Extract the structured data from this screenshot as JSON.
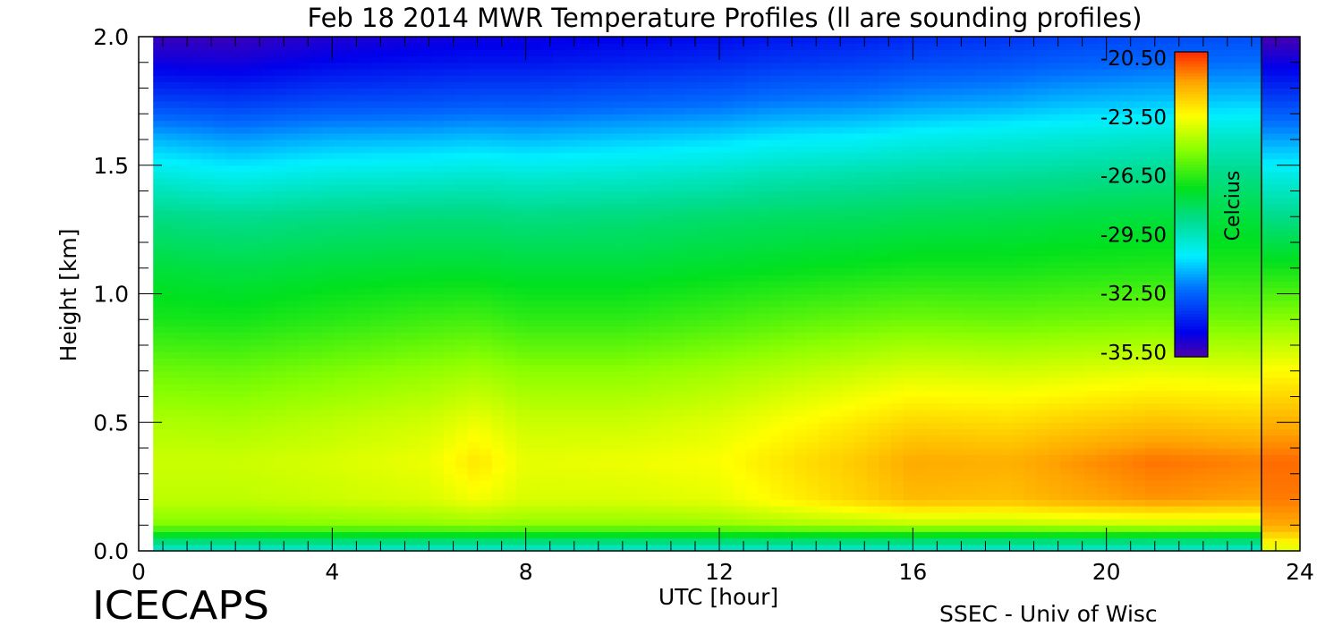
{
  "chart_data": {
    "type": "heatmap",
    "title": "Feb 18 2014 MWR Temperature Profiles (ll are sounding profiles)",
    "xlabel": "UTC [hour]",
    "ylabel": "Height [km]",
    "xlim": [
      0,
      24
    ],
    "ylim": [
      0.0,
      2.0
    ],
    "x_ticks": [
      "0",
      "4",
      "8",
      "12",
      "16",
      "20",
      "24"
    ],
    "y_ticks": [
      "0.0",
      "0.5",
      "1.0",
      "1.5",
      "2.0"
    ],
    "colorbar": {
      "label": "Celcius",
      "ticks": [
        "-20.50",
        "-23.50",
        "-26.50",
        "-29.50",
        "-32.50",
        "-35.50"
      ],
      "range": [
        -35.5,
        -20.5
      ]
    },
    "data_x_extent": [
      0.3,
      23.3
    ],
    "temperature_field": {
      "height_km": [
        0.0,
        0.05,
        0.1,
        0.2,
        0.35,
        0.5,
        0.7,
        0.9,
        1.1,
        1.3,
        1.45,
        1.6,
        1.75,
        1.9,
        2.0
      ],
      "columns": [
        {
          "utc": 0,
          "values": [
            -30,
            -28,
            -25.5,
            -24.6,
            -24.4,
            -24.8,
            -25.7,
            -26.9,
            -27.6,
            -28.6,
            -29.8,
            -31.2,
            -33.0,
            -34.5,
            -35.2
          ]
        },
        {
          "utc": 2,
          "values": [
            -30,
            -28,
            -25.5,
            -24.6,
            -24.4,
            -24.9,
            -25.8,
            -27.0,
            -27.8,
            -28.8,
            -30.2,
            -31.6,
            -33.2,
            -34.6,
            -35.2
          ]
        },
        {
          "utc": 4,
          "values": [
            -30,
            -28,
            -25.4,
            -24.4,
            -24.2,
            -24.6,
            -25.5,
            -26.7,
            -27.6,
            -28.6,
            -29.9,
            -31.3,
            -32.9,
            -34.2,
            -34.8
          ]
        },
        {
          "utc": 6,
          "values": [
            -30,
            -28,
            -25.3,
            -24.2,
            -23.9,
            -24.3,
            -25.2,
            -26.4,
            -27.5,
            -28.5,
            -29.8,
            -31.2,
            -32.8,
            -34.0,
            -34.6
          ]
        },
        {
          "utc": 7,
          "values": [
            -30,
            -28,
            -25.2,
            -23.8,
            -23.2,
            -23.9,
            -25.0,
            -26.3,
            -27.5,
            -28.5,
            -29.7,
            -31.1,
            -32.7,
            -33.9,
            -34.5
          ]
        },
        {
          "utc": 8,
          "values": [
            -30,
            -28,
            -25.3,
            -24.2,
            -24.0,
            -24.4,
            -25.3,
            -26.6,
            -27.6,
            -28.6,
            -29.8,
            -31.2,
            -32.7,
            -33.9,
            -34.5
          ]
        },
        {
          "utc": 10,
          "values": [
            -30,
            -28,
            -25.3,
            -24.2,
            -23.9,
            -24.4,
            -25.3,
            -26.6,
            -27.6,
            -28.5,
            -29.7,
            -31.0,
            -32.5,
            -33.7,
            -34.3
          ]
        },
        {
          "utc": 12,
          "values": [
            -30,
            -28,
            -25.2,
            -24.0,
            -23.7,
            -24.1,
            -25.0,
            -26.3,
            -27.4,
            -28.3,
            -29.5,
            -30.8,
            -32.3,
            -33.5,
            -34.1
          ]
        },
        {
          "utc": 13,
          "values": [
            -30,
            -28,
            -25.0,
            -23.6,
            -23.3,
            -23.8,
            -24.8,
            -26.1,
            -27.3,
            -28.2,
            -29.3,
            -30.6,
            -32.1,
            -33.3,
            -33.9
          ]
        },
        {
          "utc": 15,
          "values": [
            -30,
            -28,
            -24.8,
            -22.8,
            -22.6,
            -23.2,
            -24.4,
            -25.8,
            -27.1,
            -28.1,
            -29.1,
            -30.4,
            -31.9,
            -33.1,
            -33.7
          ]
        },
        {
          "utc": 16,
          "values": [
            -30,
            -28,
            -24.7,
            -22.4,
            -22.1,
            -22.9,
            -24.2,
            -25.7,
            -27.0,
            -28.0,
            -29.0,
            -30.2,
            -31.7,
            -32.9,
            -33.5
          ]
        },
        {
          "utc": 18,
          "values": [
            -30,
            -28,
            -24.7,
            -22.5,
            -22.2,
            -23.0,
            -24.3,
            -25.8,
            -27.0,
            -27.9,
            -28.9,
            -30.0,
            -31.5,
            -32.7,
            -33.3
          ]
        },
        {
          "utc": 19,
          "values": [
            -30,
            -28,
            -24.6,
            -22.2,
            -21.9,
            -22.8,
            -24.2,
            -25.7,
            -26.9,
            -27.8,
            -28.8,
            -29.9,
            -31.3,
            -32.5,
            -33.1
          ]
        },
        {
          "utc": 21,
          "values": [
            -30,
            -28,
            -24.5,
            -21.8,
            -21.4,
            -22.5,
            -24.0,
            -25.6,
            -26.8,
            -27.7,
            -28.6,
            -29.7,
            -31.1,
            -32.3,
            -32.9
          ]
        },
        {
          "utc": 23.3,
          "values": [
            -30,
            -28,
            -24.5,
            -22.0,
            -21.6,
            -22.7,
            -24.1,
            -25.7,
            -26.8,
            -27.7,
            -28.6,
            -29.6,
            -31.0,
            -32.2,
            -32.8
          ]
        }
      ]
    },
    "right_strip_values": [
      -24.2,
      -23.2,
      -22.1,
      -21.5,
      -21.3,
      -22.2,
      -23.6,
      -25.3,
      -27.0,
      -28.7,
      -30.0,
      -31.5,
      -33.0,
      -34.5,
      -35.4
    ]
  },
  "footer": {
    "left_text": "ICECAPS",
    "right_text": "SSEC - Univ of Wisc"
  }
}
